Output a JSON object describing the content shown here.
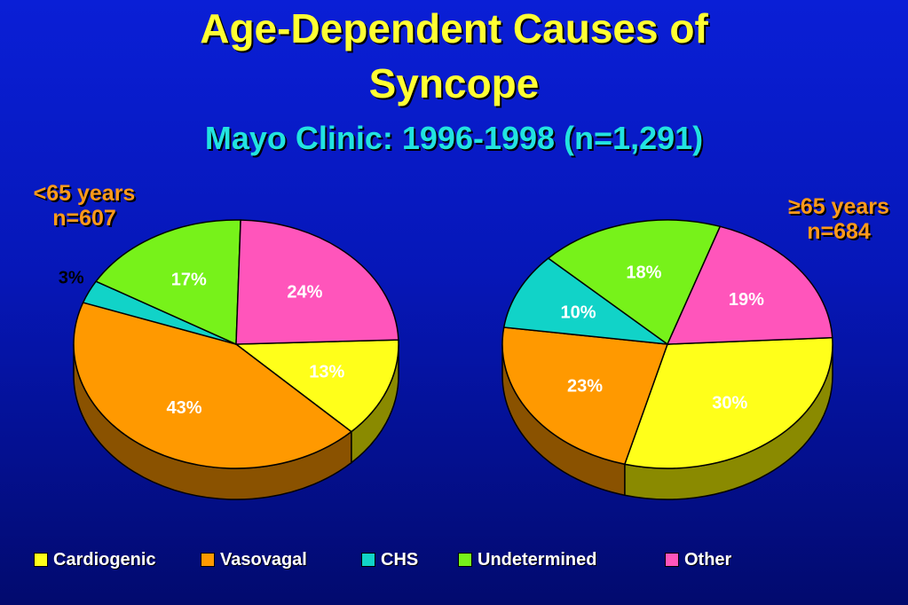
{
  "title_line1": "Age-Dependent Causes of",
  "title_line2": "Syncope",
  "subtitle": "Mayo Clinic:  1996-1998 (n=1,291)",
  "groups": [
    {
      "label": "<65 years",
      "n": "n=607"
    },
    {
      "label": "≥65 years",
      "n": "n=684"
    }
  ],
  "chart_data": {
    "type": "pie",
    "title": "Age-Dependent Causes of Syncope",
    "subtitle": "Mayo Clinic:  1996-1998 (n=1,291)",
    "legend_position": "bottom",
    "categories": [
      "Cardiogenic",
      "Vasovagal",
      "CHS",
      "Undetermined",
      "Other"
    ],
    "colors": [
      "#ffff1a",
      "#ff9900",
      "#11d3c8",
      "#77f21a",
      "#ff55bb"
    ],
    "side_colors": [
      "#8a8a00",
      "#8a5200",
      "#0a7a74",
      "#3f8a0a",
      "#8a2d62"
    ],
    "series": [
      {
        "name": "<65 years",
        "values": [
          13,
          43,
          3,
          17,
          24
        ],
        "labels": [
          "13%",
          "43%",
          "3%",
          "17%",
          "24%"
        ]
      },
      {
        "name": "≥65 years",
        "values": [
          30,
          23,
          10,
          18,
          19
        ],
        "labels": [
          "30%",
          "23%",
          "10%",
          "18%",
          "19%"
        ]
      }
    ]
  },
  "legend": [
    {
      "label": "Cardiogenic",
      "color": "#ffff1a"
    },
    {
      "label": "Vasovagal",
      "color": "#ff9900"
    },
    {
      "label": "CHS",
      "color": "#11d3c8"
    },
    {
      "label": "Undetermined",
      "color": "#77f21a"
    },
    {
      "label": "Other",
      "color": "#ff55bb"
    }
  ]
}
